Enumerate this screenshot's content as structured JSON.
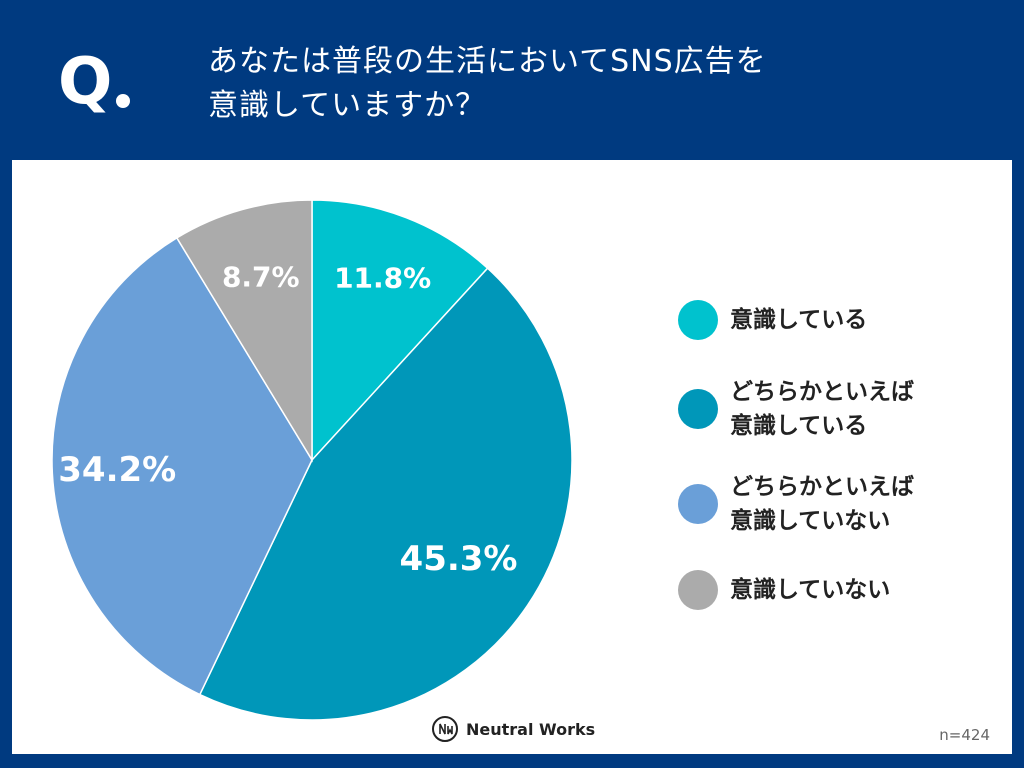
{
  "header": {
    "q_label": "Q",
    "question_line1": "あなたは普段の生活においてSNS広告を",
    "question_line2": "意識していますか？"
  },
  "chart_data": {
    "type": "pie",
    "title": "あなたは普段の生活においてSNS広告を意識していますか？",
    "categories": [
      "意識している",
      "どちらかといえば意識している",
      "どちらかといえば意識していない",
      "意識していない"
    ],
    "values": [
      11.8,
      45.3,
      34.2,
      8.7
    ],
    "value_labels": [
      "11.8%",
      "45.3%",
      "34.2%",
      "8.7%"
    ],
    "colors": [
      "#00C2CE",
      "#0097B9",
      "#6A9FD8",
      "#ABABAB"
    ],
    "start": "12 o'clock",
    "direction": "clockwise"
  },
  "legend": {
    "items": [
      {
        "label": "意識している",
        "color": "#00C2CE"
      },
      {
        "label": "どちらかといえば\n意識している",
        "color": "#0097B9"
      },
      {
        "label": "どちらかといえば\n意識していない",
        "color": "#6A9FD8"
      },
      {
        "label": "意識していない",
        "color": "#ABABAB"
      }
    ]
  },
  "footer": {
    "brand": "Neutral Works",
    "sample_size": "n=424"
  }
}
